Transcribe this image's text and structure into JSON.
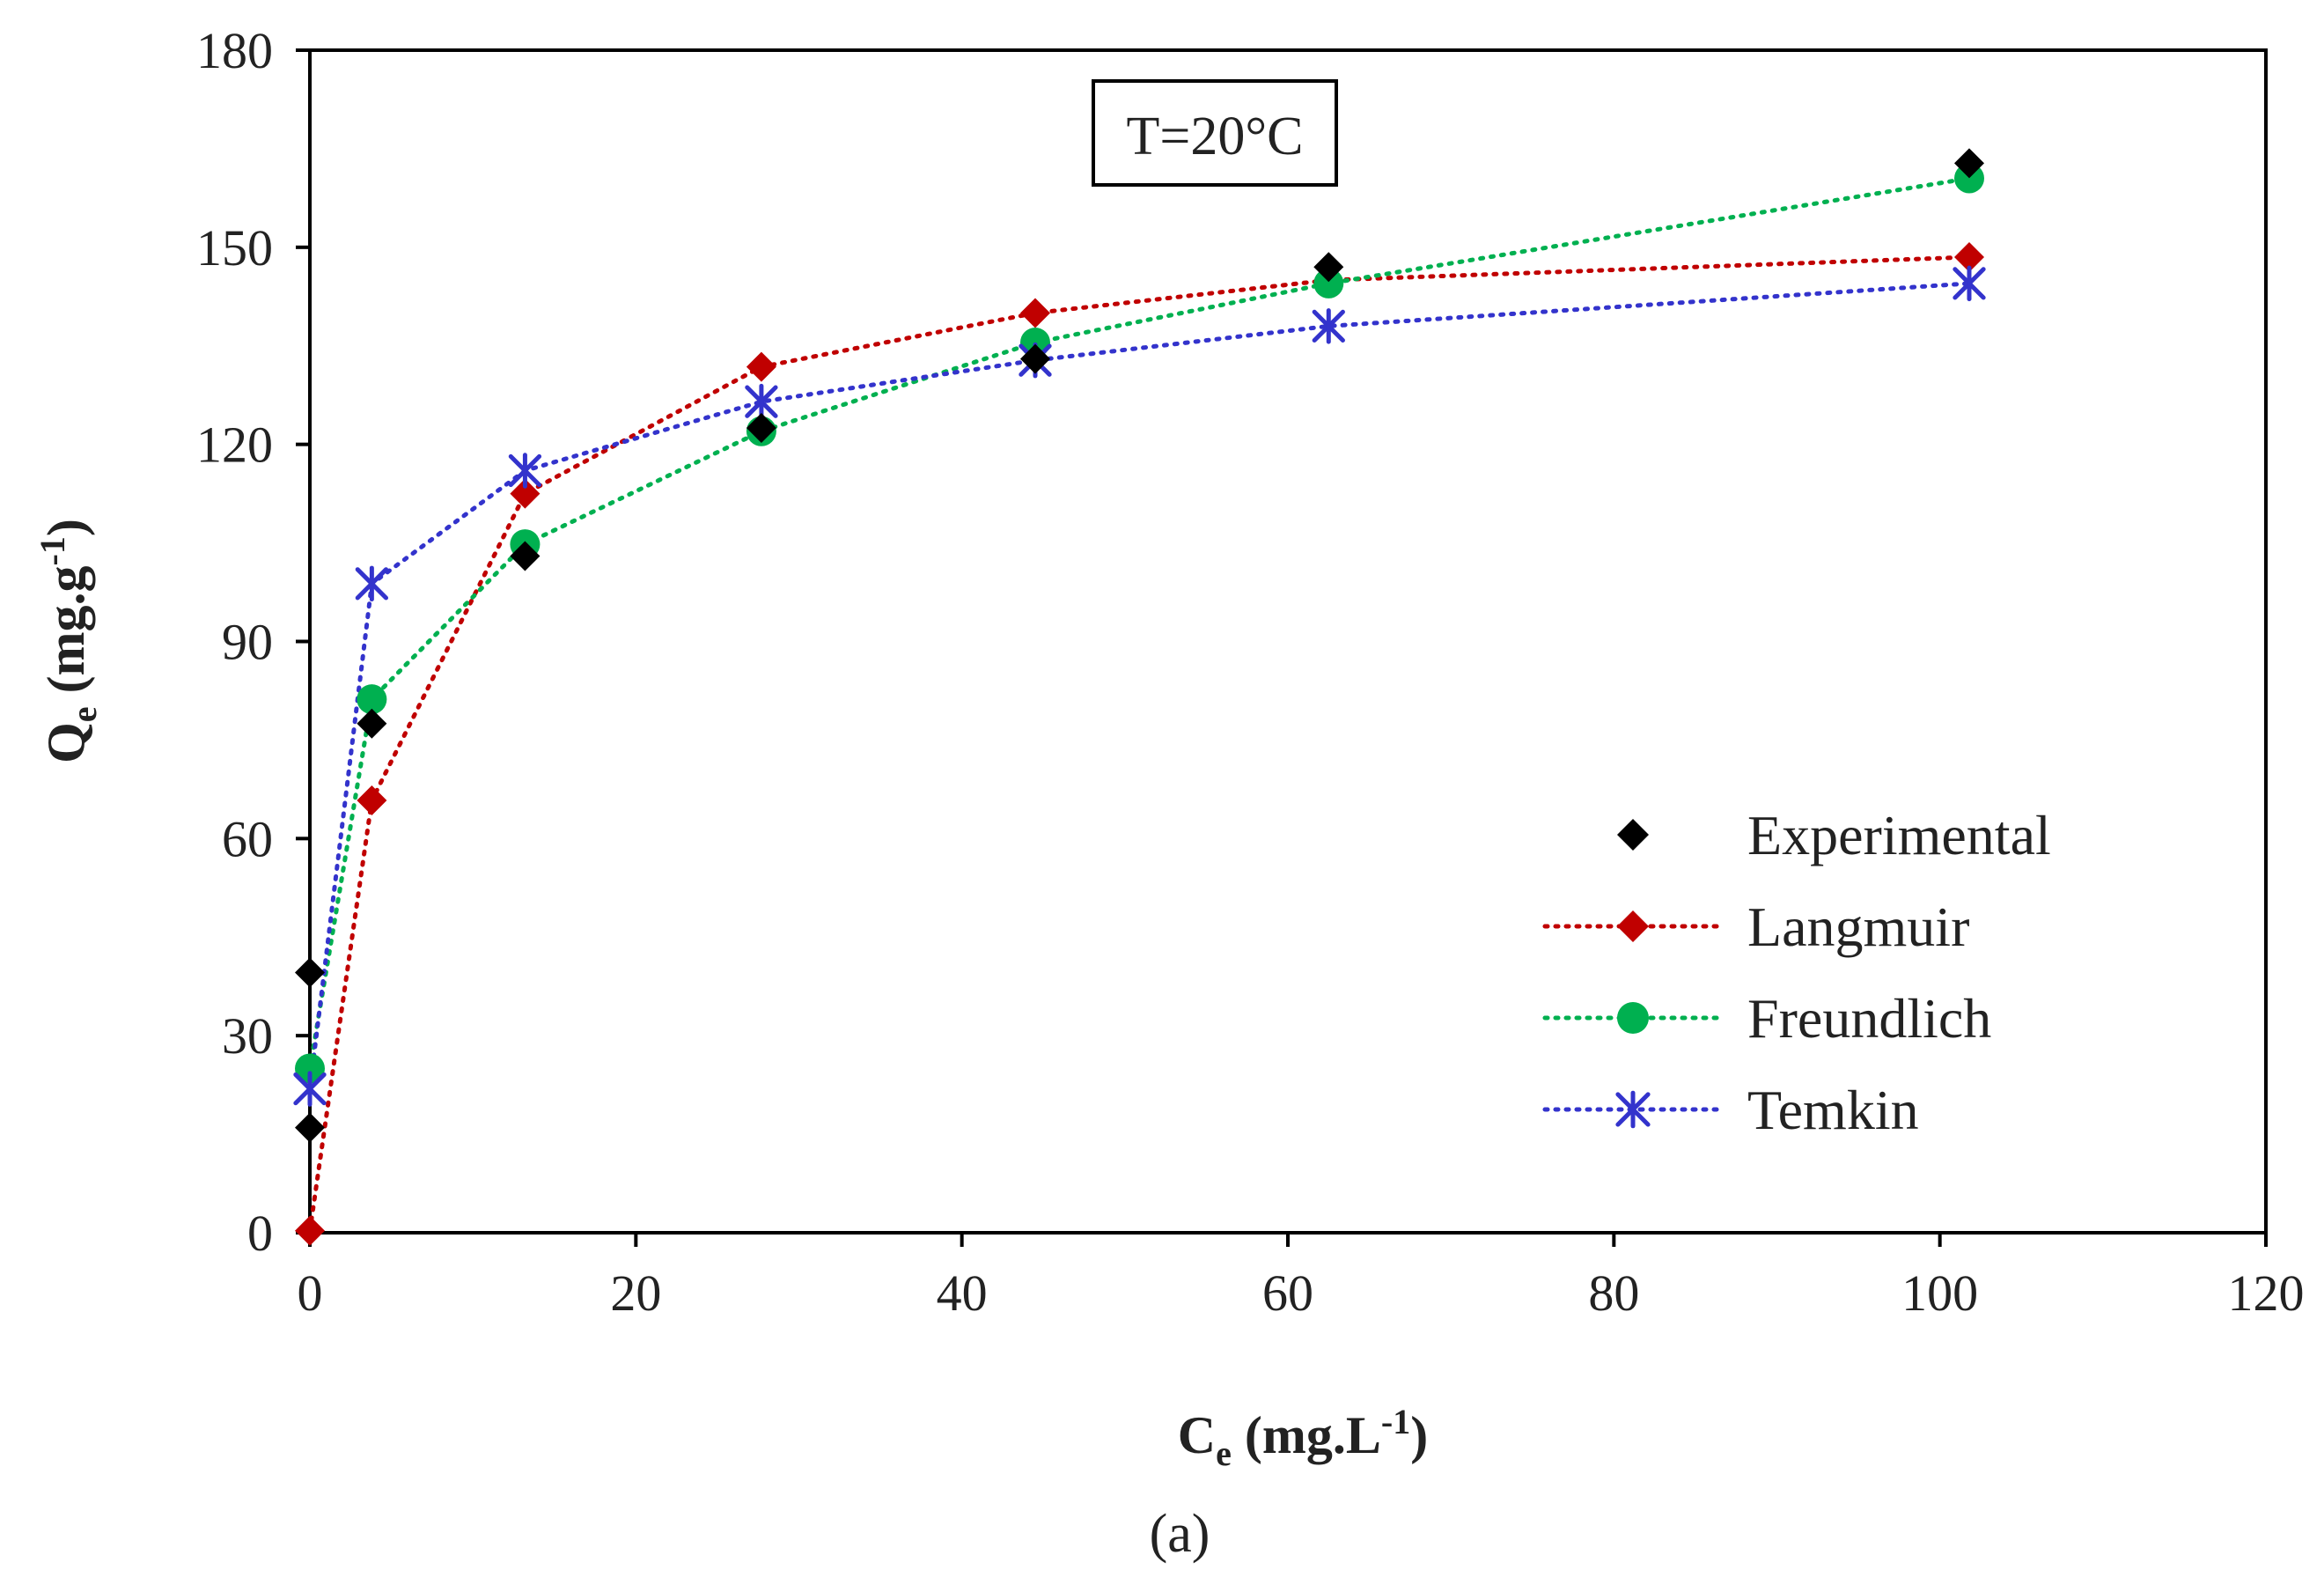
{
  "chart_data": {
    "type": "scatter",
    "annotation": "T=20°C",
    "caption": "(a)",
    "x_axis": {
      "label_main": "C",
      "label_sub": "e",
      "label_rest_1": " (mg.L",
      "label_sup": "-1",
      "label_rest_2": ")",
      "range": [
        0,
        120
      ],
      "ticks": [
        0,
        20,
        40,
        60,
        80,
        100,
        120
      ]
    },
    "y_axis": {
      "label_main": "Q",
      "label_sub": "e",
      "label_rest_1": " (mg.g",
      "label_sup": "-1",
      "label_rest_2": ")",
      "range": [
        0,
        180
      ],
      "ticks": [
        0,
        30,
        60,
        90,
        120,
        150,
        180
      ]
    },
    "grid": false,
    "legend_position": "bottom-right",
    "series": [
      {
        "name": "Experimental",
        "color": "#000000",
        "marker": "diamond",
        "line": false,
        "points": [
          [
            0,
            39.6
          ],
          [
            0,
            16.0
          ],
          [
            3.8,
            77.5
          ],
          [
            13.2,
            103.0
          ],
          [
            27.7,
            122.5
          ],
          [
            44.5,
            133.0
          ],
          [
            62.5,
            147.0
          ],
          [
            101.8,
            162.8
          ]
        ]
      },
      {
        "name": "Langmuir",
        "color": "#c00000",
        "marker": "diamond",
        "line": true,
        "points": [
          [
            0,
            0.3
          ],
          [
            3.8,
            65.8
          ],
          [
            13.2,
            112.5
          ],
          [
            27.7,
            131.8
          ],
          [
            44.5,
            140.0
          ],
          [
            62.5,
            145.0
          ],
          [
            101.8,
            148.5
          ]
        ]
      },
      {
        "name": "Freundlich",
        "color": "#00b050",
        "marker": "circle",
        "line": true,
        "points": [
          [
            0,
            25.0
          ],
          [
            3.8,
            81.2
          ],
          [
            13.2,
            104.8
          ],
          [
            27.7,
            122.0
          ],
          [
            44.5,
            135.5
          ],
          [
            62.5,
            144.5
          ],
          [
            101.8,
            160.5
          ]
        ]
      },
      {
        "name": "Temkin",
        "color": "#3333cc",
        "marker": "star",
        "line": true,
        "points": [
          [
            0,
            21.9
          ],
          [
            3.8,
            98.8
          ],
          [
            13.2,
            116.0
          ],
          [
            27.7,
            126.5
          ],
          [
            44.5,
            132.8
          ],
          [
            62.5,
            138.0
          ],
          [
            101.8,
            144.5
          ]
        ]
      }
    ]
  }
}
